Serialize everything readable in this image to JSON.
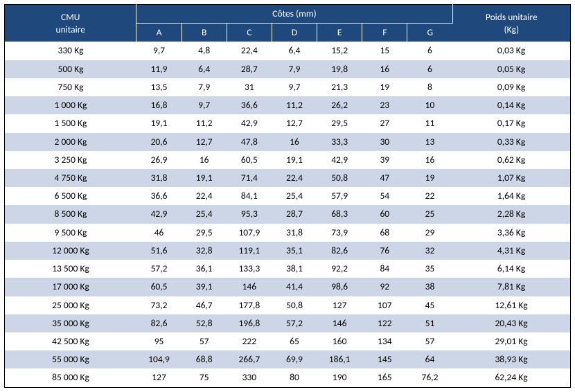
{
  "table": {
    "type": "table",
    "header_bg": "#1f497d",
    "header_fg": "#ffffff",
    "row_odd_bg": "#ffffff",
    "row_even_bg": "#cdd6e6",
    "border_color": "#000000",
    "font_size": 13.5,
    "header": {
      "cmu_line1": "CMU",
      "cmu_line2": "unitaire",
      "cotes": "Côtes (mm)",
      "poids_line1": "Poids unitaire",
      "poids_line2": "(Kg)",
      "cols": [
        "A",
        "B",
        "C",
        "D",
        "E",
        "F",
        "G"
      ]
    },
    "col_widths": {
      "cmu": 190,
      "dim": 65,
      "weight": 170
    },
    "rows": [
      {
        "cmu": "330 Kg",
        "A": "9,7",
        "B": "4,8",
        "C": "22,4",
        "D": "6,4",
        "E": "15,2",
        "F": "15",
        "G": "6",
        "wt": "0,03 Kg"
      },
      {
        "cmu": "500 Kg",
        "A": "11,9",
        "B": "6,4",
        "C": "28,7",
        "D": "7,9",
        "E": "19,8",
        "F": "16",
        "G": "6",
        "wt": "0,05 Kg"
      },
      {
        "cmu": "750 Kg",
        "A": "13,5",
        "B": "7,9",
        "C": "31",
        "D": "9,7",
        "E": "21,3",
        "F": "19",
        "G": "8",
        "wt": "0,09 Kg"
      },
      {
        "cmu": "1 000 Kg",
        "A": "16,8",
        "B": "9,7",
        "C": "36,6",
        "D": "11,2",
        "E": "26,2",
        "F": "23",
        "G": "10",
        "wt": "0,14 Kg"
      },
      {
        "cmu": "1 500 Kg",
        "A": "19,1",
        "B": "11,2",
        "C": "42,9",
        "D": "12,7",
        "E": "29,5",
        "F": "27",
        "G": "11",
        "wt": "0,17 Kg"
      },
      {
        "cmu": "2 000 Kg",
        "A": "20,6",
        "B": "12,7",
        "C": "47,8",
        "D": "16",
        "E": "33,3",
        "F": "30",
        "G": "13",
        "wt": "0,33 Kg"
      },
      {
        "cmu": "3 250 Kg",
        "A": "26,9",
        "B": "16",
        "C": "60,5",
        "D": "19,1",
        "E": "42,9",
        "F": "39",
        "G": "16",
        "wt": "0,62 Kg"
      },
      {
        "cmu": "4 750 Kg",
        "A": "31,8",
        "B": "19,1",
        "C": "71,4",
        "D": "22,4",
        "E": "50,8",
        "F": "47",
        "G": "19",
        "wt": "1,07 Kg"
      },
      {
        "cmu": "6 500 Kg",
        "A": "36,6",
        "B": "22,4",
        "C": "84,1",
        "D": "25,4",
        "E": "57,9",
        "F": "54",
        "G": "22",
        "wt": "1,64 Kg"
      },
      {
        "cmu": "8 500 Kg",
        "A": "42,9",
        "B": "25,4",
        "C": "95,3",
        "D": "28,7",
        "E": "68,3",
        "F": "60",
        "G": "25",
        "wt": "2,28 Kg"
      },
      {
        "cmu": "9 500 Kg",
        "A": "46",
        "B": "29,5",
        "C": "107,9",
        "D": "31,8",
        "E": "73,9",
        "F": "68",
        "G": "29",
        "wt": "3,36 Kg"
      },
      {
        "cmu": "12 000 Kg",
        "A": "51,6",
        "B": "32,8",
        "C": "119,1",
        "D": "35,1",
        "E": "82,6",
        "F": "76",
        "G": "32",
        "wt": "4,31 Kg"
      },
      {
        "cmu": "13 500 Kg",
        "A": "57,2",
        "B": "36,1",
        "C": "133,3",
        "D": "38,1",
        "E": "92,2",
        "F": "84",
        "G": "35",
        "wt": "6,14 Kg"
      },
      {
        "cmu": "17 000 Kg",
        "A": "60,5",
        "B": "39,1",
        "C": "146",
        "D": "41,4",
        "E": "98,6",
        "F": "92",
        "G": "38",
        "wt": "7,81 Kg"
      },
      {
        "cmu": "25 000 Kg",
        "A": "73,2",
        "B": "46,7",
        "C": "177,8",
        "D": "50,8",
        "E": "127",
        "F": "107",
        "G": "45",
        "wt": "12,61 Kg"
      },
      {
        "cmu": "35 000 Kg",
        "A": "82,6",
        "B": "52,8",
        "C": "196,8",
        "D": "57,2",
        "E": "146",
        "F": "122",
        "G": "51",
        "wt": "20,43 Kg"
      },
      {
        "cmu": "42 500 Kg",
        "A": "95",
        "B": "57",
        "C": "222",
        "D": "65",
        "E": "160",
        "F": "134",
        "G": "57",
        "wt": "29,01 Kg"
      },
      {
        "cmu": "55 000 Kg",
        "A": "104,9",
        "B": "68,8",
        "C": "266,7",
        "D": "69,9",
        "E": "186,1",
        "F": "145",
        "G": "64",
        "wt": "38,93 Kg"
      },
      {
        "cmu": "85 000 Kg",
        "A": "127",
        "B": "75",
        "C": "330",
        "D": "80",
        "E": "190",
        "F": "165",
        "G": "76,2",
        "wt": "62,24 Kg"
      }
    ]
  }
}
